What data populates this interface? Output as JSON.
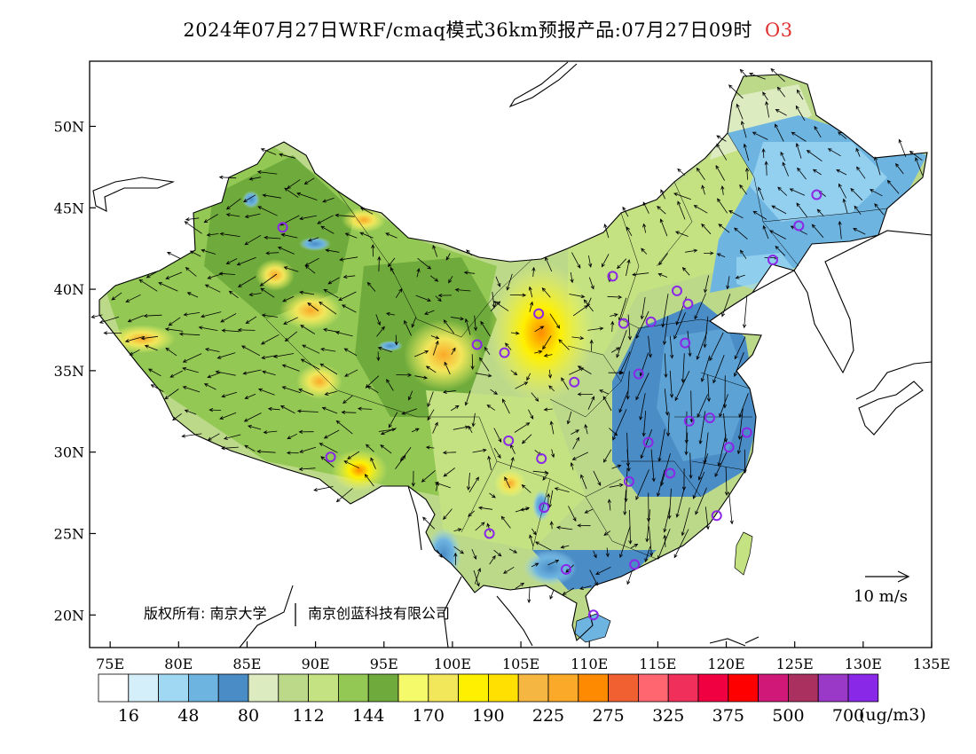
{
  "title": {
    "text": "2024年07月27日WRF/cmaq模式36km预报产品:07月27日09时",
    "species": "O3"
  },
  "axes": {
    "lat_labels": [
      "20N",
      "25N",
      "30N",
      "35N",
      "40N",
      "45N",
      "50N"
    ],
    "lon_labels": [
      "75E",
      "80E",
      "85E",
      "90E",
      "95E",
      "100E",
      "105E",
      "110E",
      "115E",
      "120E",
      "125E",
      "130E",
      "135E"
    ],
    "lon_range": [
      73.5,
      135
    ],
    "lat_range": [
      18,
      54
    ]
  },
  "copyright": {
    "prefix": "版权所有: 南京大学",
    "company": "南京创蓝科技有限公司"
  },
  "vector_scale": {
    "label": "10 m/s"
  },
  "colorbar": {
    "unit": "(ug/m3)",
    "colors": [
      "#ffffff",
      "#d4eefa",
      "#a0d8f4",
      "#6db4e0",
      "#4a8cc6",
      "#dcebc0",
      "#bcd98a",
      "#c4e282",
      "#93c855",
      "#6fab3c",
      "#f4fa6a",
      "#f2e65a",
      "#fff000",
      "#ffe000",
      "#f6b642",
      "#fba928",
      "#fd8a00",
      "#f06030",
      "#ff6670",
      "#f0305a",
      "#f00040",
      "#ff0000",
      "#d01878",
      "#aa3060",
      "#9a38c8",
      "#8a28e8"
    ],
    "labels": [
      "16",
      "48",
      "80",
      "112",
      "144",
      "170",
      "190",
      "225",
      "275",
      "325",
      "375",
      "500",
      "700"
    ]
  },
  "stations": [
    {
      "lon": 87.6,
      "lat": 43.8
    },
    {
      "lon": 91.1,
      "lat": 29.7
    },
    {
      "lon": 101.8,
      "lat": 36.6
    },
    {
      "lon": 103.8,
      "lat": 36.1
    },
    {
      "lon": 106.3,
      "lat": 38.5
    },
    {
      "lon": 108.9,
      "lat": 34.3
    },
    {
      "lon": 111.7,
      "lat": 40.8
    },
    {
      "lon": 112.5,
      "lat": 37.9
    },
    {
      "lon": 114.5,
      "lat": 38.0
    },
    {
      "lon": 116.4,
      "lat": 39.9
    },
    {
      "lon": 117.2,
      "lat": 39.1
    },
    {
      "lon": 117.0,
      "lat": 36.7
    },
    {
      "lon": 113.6,
      "lat": 34.8
    },
    {
      "lon": 117.3,
      "lat": 31.9
    },
    {
      "lon": 118.8,
      "lat": 32.1
    },
    {
      "lon": 121.5,
      "lat": 31.2
    },
    {
      "lon": 120.2,
      "lat": 30.3
    },
    {
      "lon": 114.3,
      "lat": 30.6
    },
    {
      "lon": 112.9,
      "lat": 28.2
    },
    {
      "lon": 115.9,
      "lat": 28.7
    },
    {
      "lon": 119.3,
      "lat": 26.1
    },
    {
      "lon": 113.3,
      "lat": 23.1
    },
    {
      "lon": 108.3,
      "lat": 22.8
    },
    {
      "lon": 110.3,
      "lat": 20.0
    },
    {
      "lon": 106.7,
      "lat": 26.6
    },
    {
      "lon": 102.7,
      "lat": 25.0
    },
    {
      "lon": 104.1,
      "lat": 30.7
    },
    {
      "lon": 106.5,
      "lat": 29.6
    },
    {
      "lon": 123.4,
      "lat": 41.8
    },
    {
      "lon": 125.3,
      "lat": 43.9
    },
    {
      "lon": 126.6,
      "lat": 45.8
    }
  ]
}
